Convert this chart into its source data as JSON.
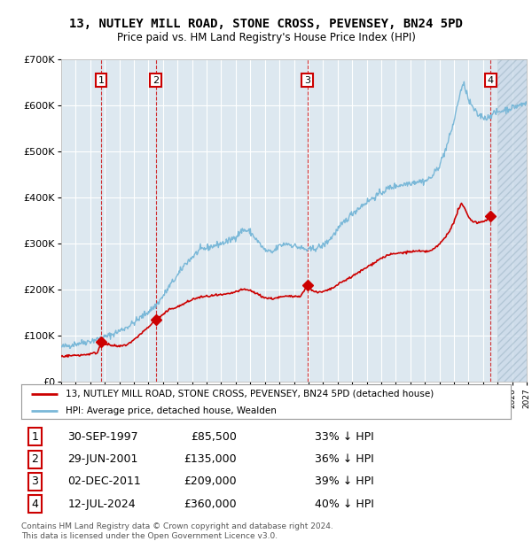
{
  "title": "13, NUTLEY MILL ROAD, STONE CROSS, PEVENSEY, BN24 5PD",
  "subtitle": "Price paid vs. HM Land Registry's House Price Index (HPI)",
  "xlim": [
    1995,
    2027
  ],
  "ylim": [
    0,
    700000
  ],
  "yticks": [
    0,
    100000,
    200000,
    300000,
    400000,
    500000,
    600000,
    700000
  ],
  "ytick_labels": [
    "£0",
    "£100K",
    "£200K",
    "£300K",
    "£400K",
    "£500K",
    "£600K",
    "£700K"
  ],
  "hpi_color": "#7ab8d8",
  "price_color": "#cc0000",
  "sale_points": [
    {
      "num": 1,
      "year": 1997.75,
      "price": 85500
    },
    {
      "num": 2,
      "year": 2001.5,
      "price": 135000
    },
    {
      "num": 3,
      "year": 2011.92,
      "price": 209000
    },
    {
      "num": 4,
      "year": 2024.53,
      "price": 360000
    }
  ],
  "legend_line1": "13, NUTLEY MILL ROAD, STONE CROSS, PEVENSEY, BN24 5PD (detached house)",
  "legend_line2": "HPI: Average price, detached house, Wealden",
  "table_rows": [
    [
      "1",
      "30-SEP-1997",
      "£85,500",
      "33% ↓ HPI"
    ],
    [
      "2",
      "29-JUN-2001",
      "£135,000",
      "36% ↓ HPI"
    ],
    [
      "3",
      "02-DEC-2011",
      "£209,000",
      "39% ↓ HPI"
    ],
    [
      "4",
      "12-JUL-2024",
      "£360,000",
      "40% ↓ HPI"
    ]
  ],
  "footer": "Contains HM Land Registry data © Crown copyright and database right 2024.\nThis data is licensed under the Open Government Licence v3.0.",
  "bg_color": "#ffffff",
  "plot_bg_color": "#dde8f0",
  "grid_color": "#ffffff",
  "future_start": 2025.0,
  "hpi_anchors": [
    [
      1995.0,
      75000
    ],
    [
      1995.5,
      78000
    ],
    [
      1996.0,
      82000
    ],
    [
      1996.5,
      85000
    ],
    [
      1997.0,
      88000
    ],
    [
      1997.5,
      92000
    ],
    [
      1998.0,
      97000
    ],
    [
      1998.5,
      102000
    ],
    [
      1999.0,
      110000
    ],
    [
      1999.5,
      118000
    ],
    [
      2000.0,
      128000
    ],
    [
      2000.5,
      140000
    ],
    [
      2001.0,
      152000
    ],
    [
      2001.5,
      165000
    ],
    [
      2002.0,
      185000
    ],
    [
      2002.5,
      210000
    ],
    [
      2003.0,
      230000
    ],
    [
      2003.5,
      255000
    ],
    [
      2004.0,
      270000
    ],
    [
      2004.5,
      285000
    ],
    [
      2005.0,
      290000
    ],
    [
      2005.5,
      295000
    ],
    [
      2006.0,
      300000
    ],
    [
      2006.5,
      305000
    ],
    [
      2007.0,
      315000
    ],
    [
      2007.5,
      330000
    ],
    [
      2008.0,
      325000
    ],
    [
      2008.5,
      305000
    ],
    [
      2009.0,
      285000
    ],
    [
      2009.5,
      280000
    ],
    [
      2010.0,
      295000
    ],
    [
      2010.5,
      300000
    ],
    [
      2011.0,
      295000
    ],
    [
      2011.5,
      290000
    ],
    [
      2012.0,
      285000
    ],
    [
      2012.5,
      290000
    ],
    [
      2013.0,
      295000
    ],
    [
      2013.5,
      310000
    ],
    [
      2014.0,
      330000
    ],
    [
      2014.5,
      348000
    ],
    [
      2015.0,
      365000
    ],
    [
      2015.5,
      378000
    ],
    [
      2016.0,
      390000
    ],
    [
      2016.5,
      400000
    ],
    [
      2017.0,
      410000
    ],
    [
      2017.5,
      420000
    ],
    [
      2018.0,
      425000
    ],
    [
      2018.5,
      428000
    ],
    [
      2019.0,
      432000
    ],
    [
      2019.5,
      435000
    ],
    [
      2020.0,
      435000
    ],
    [
      2020.5,
      445000
    ],
    [
      2021.0,
      470000
    ],
    [
      2021.5,
      510000
    ],
    [
      2022.0,
      565000
    ],
    [
      2022.3,
      610000
    ],
    [
      2022.5,
      635000
    ],
    [
      2022.7,
      645000
    ],
    [
      2022.9,
      625000
    ],
    [
      2023.0,
      610000
    ],
    [
      2023.3,
      595000
    ],
    [
      2023.6,
      580000
    ],
    [
      2024.0,
      575000
    ],
    [
      2024.3,
      572000
    ],
    [
      2024.53,
      580000
    ],
    [
      2025.0,
      585000
    ],
    [
      2026.0,
      595000
    ],
    [
      2027.0,
      605000
    ]
  ],
  "price_anchors": [
    [
      1995.0,
      55000
    ],
    [
      1995.5,
      56000
    ],
    [
      1996.0,
      57000
    ],
    [
      1996.5,
      58000
    ],
    [
      1997.0,
      60000
    ],
    [
      1997.5,
      63000
    ],
    [
      1997.75,
      85500
    ],
    [
      1998.0,
      82000
    ],
    [
      1998.5,
      78000
    ],
    [
      1999.0,
      76000
    ],
    [
      1999.5,
      80000
    ],
    [
      2000.0,
      90000
    ],
    [
      2000.5,
      105000
    ],
    [
      2001.0,
      118000
    ],
    [
      2001.5,
      135000
    ],
    [
      2002.0,
      145000
    ],
    [
      2002.5,
      158000
    ],
    [
      2003.0,
      162000
    ],
    [
      2003.5,
      170000
    ],
    [
      2004.0,
      178000
    ],
    [
      2004.5,
      183000
    ],
    [
      2005.0,
      185000
    ],
    [
      2005.5,
      187000
    ],
    [
      2006.0,
      188000
    ],
    [
      2006.5,
      190000
    ],
    [
      2007.0,
      195000
    ],
    [
      2007.5,
      200000
    ],
    [
      2008.0,
      198000
    ],
    [
      2008.5,
      190000
    ],
    [
      2009.0,
      182000
    ],
    [
      2009.5,
      180000
    ],
    [
      2010.0,
      183000
    ],
    [
      2010.5,
      185000
    ],
    [
      2011.0,
      185000
    ],
    [
      2011.5,
      187000
    ],
    [
      2011.92,
      209000
    ],
    [
      2012.0,
      205000
    ],
    [
      2012.3,
      198000
    ],
    [
      2012.6,
      193000
    ],
    [
      2013.0,
      195000
    ],
    [
      2013.5,
      200000
    ],
    [
      2014.0,
      210000
    ],
    [
      2014.5,
      220000
    ],
    [
      2015.0,
      228000
    ],
    [
      2015.5,
      238000
    ],
    [
      2016.0,
      248000
    ],
    [
      2016.5,
      258000
    ],
    [
      2017.0,
      268000
    ],
    [
      2017.5,
      275000
    ],
    [
      2018.0,
      278000
    ],
    [
      2018.5,
      280000
    ],
    [
      2019.0,
      282000
    ],
    [
      2019.5,
      283000
    ],
    [
      2020.0,
      282000
    ],
    [
      2020.5,
      285000
    ],
    [
      2021.0,
      298000
    ],
    [
      2021.5,
      318000
    ],
    [
      2022.0,
      345000
    ],
    [
      2022.3,
      375000
    ],
    [
      2022.5,
      385000
    ],
    [
      2022.7,
      378000
    ],
    [
      2023.0,
      358000
    ],
    [
      2023.3,
      348000
    ],
    [
      2023.6,
      345000
    ],
    [
      2024.0,
      348000
    ],
    [
      2024.3,
      352000
    ],
    [
      2024.53,
      360000
    ]
  ]
}
